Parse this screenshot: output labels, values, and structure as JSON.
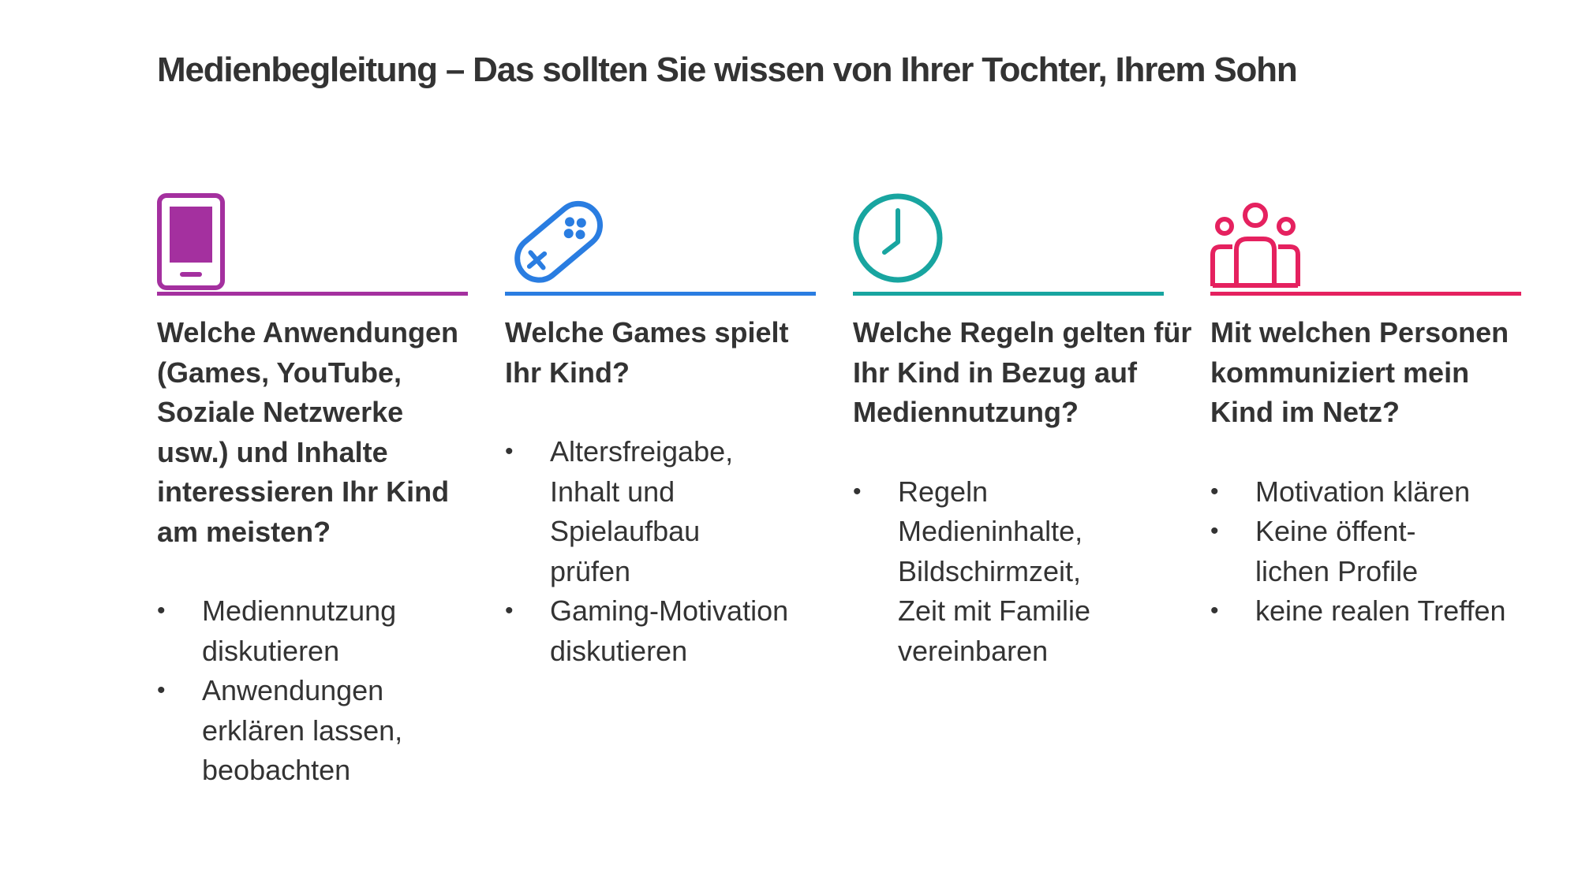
{
  "title": "Medienbegleitung – Das sollten Sie wissen von Ihrer Tochter, Ihrem Sohn",
  "columns": [
    {
      "icon": "smartphone-icon",
      "color": "#A4309F",
      "question": "Welche Anwendungen (Games, YouTube, Soziale Netzwerke usw.) und Inhalte interessieren Ihr Kind am meisten?",
      "bullets": [
        "Mediennutzung diskutieren",
        "Anwendungen erklären lassen, beobachten"
      ]
    },
    {
      "icon": "gamepad-icon",
      "color": "#2A7DE1",
      "question": "Welche Games spielt Ihr Kind?",
      "bullets": [
        "Altersfreigabe, Inhalt und Spielaufbau prüfen",
        "Gaming-Motivation diskutieren"
      ]
    },
    {
      "icon": "clock-icon",
      "color": "#18A5A0",
      "question": "Welche Regeln gelten für Ihr Kind in Bezug auf Mediennutzung?",
      "bullets": [
        "Regeln Medieninhalte, Bildschirmzeit, Zeit mit Familie vereinbaren"
      ]
    },
    {
      "icon": "people-group-icon",
      "color": "#E5215F",
      "question": "Mit welchen Personen kommuniziert mein Kind im Netz?",
      "bullets": [
        "Motivation klären",
        "Keine öffent-lichen Profile",
        "keine realen Treffen"
      ]
    }
  ]
}
